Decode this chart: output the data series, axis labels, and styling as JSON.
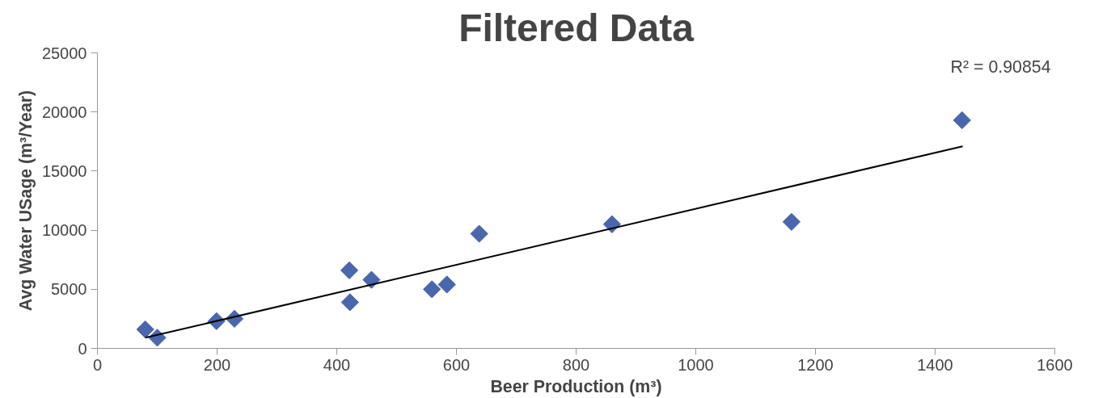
{
  "chart_data": {
    "type": "scatter",
    "title": "Filtered Data",
    "xlabel": "Beer Production (m³)",
    "ylabel": "Avg Water USage (m³/Year)",
    "annotations": [
      "R² = 0.90854"
    ],
    "xlim": [
      0,
      1600
    ],
    "xticks": [
      0,
      200,
      400,
      600,
      800,
      1000,
      1200,
      1400,
      1600
    ],
    "ylim": [
      0,
      25000
    ],
    "yticks": [
      0,
      5000,
      10000,
      15000,
      20000,
      25000
    ],
    "grid": false,
    "series": [
      {
        "marker": "diamond",
        "color": "#4a66ac",
        "x": [
          80,
          100,
          199,
          229,
          421,
          422,
          458,
          559,
          584,
          638,
          860,
          1160,
          1445
        ],
        "values": [
          1600,
          900,
          2300,
          2500,
          6600,
          3900,
          5800,
          5000,
          5400,
          9700,
          10500,
          10700,
          19300
        ]
      },
      {
        "type": "line",
        "color": "#000000",
        "line_style": "solid",
        "x": [
          80,
          1446
        ],
        "values": [
          900,
          17100
        ]
      }
    ]
  }
}
